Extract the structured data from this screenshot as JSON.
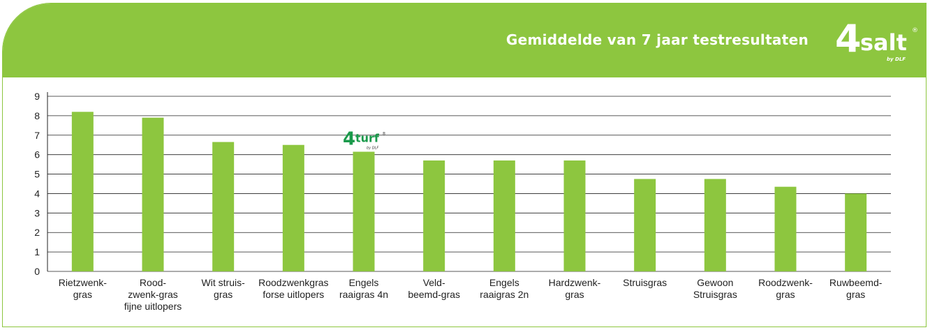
{
  "header": {
    "title": "Gemiddelde van 7 jaar testresultaten"
  },
  "brand": {
    "number": "4",
    "word": "salt",
    "reg": "®",
    "by": "by DLF"
  },
  "badge": {
    "number": "4",
    "word": "turf",
    "reg": "®",
    "by": "by DLF"
  },
  "colors": {
    "accent": "#8dc63f",
    "bar": "#8dc63f",
    "badge": "#1a9a4b",
    "grid": "#222222"
  },
  "chart_data": {
    "type": "bar",
    "categories": [
      [
        "Rietzwenk-",
        "gras"
      ],
      [
        "Rood-",
        "zwenk-gras",
        "fijne uitlopers"
      ],
      [
        "Wit struis-",
        "gras"
      ],
      [
        "Roodzwenkgras",
        "forse uitlopers"
      ],
      [
        "Engels",
        "raaigras 4n"
      ],
      [
        "Veld-",
        "beemd-gras"
      ],
      [
        "Engels",
        "raaigras 2n"
      ],
      [
        "Hardzwenk-",
        "gras"
      ],
      [
        "Struisgras"
      ],
      [
        "Gewoon",
        "Struisgras"
      ],
      [
        "Roodzwenk-",
        "gras"
      ],
      [
        "Ruwbeemd-",
        "gras"
      ]
    ],
    "values": [
      8.2,
      7.9,
      6.65,
      6.5,
      6.15,
      5.7,
      5.7,
      5.7,
      4.75,
      4.75,
      4.35,
      4.0
    ],
    "ylim": [
      0,
      9
    ],
    "yticks": [
      0,
      1,
      2,
      3,
      4,
      5,
      6,
      7,
      8,
      9
    ],
    "grid": true,
    "highlight_index": 4
  }
}
